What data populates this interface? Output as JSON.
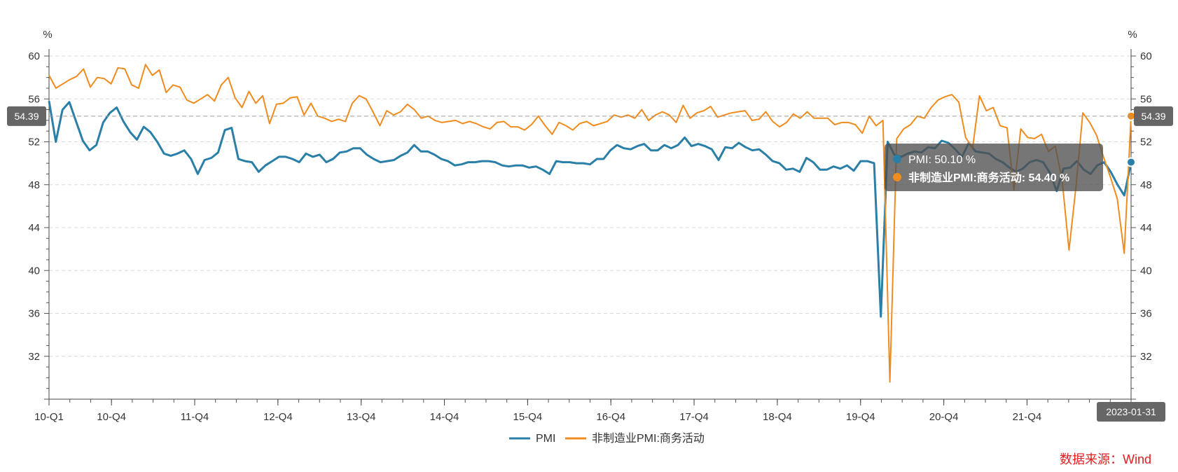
{
  "chart_data": {
    "type": "line",
    "left_axis_unit": "%",
    "right_axis_unit": "%",
    "y_ticks": [
      32,
      36,
      40,
      44,
      48,
      52,
      56,
      60
    ],
    "ylim": [
      28,
      60
    ],
    "x_start": "2010-01",
    "x_end": "2023-01",
    "x_tick_labels": [
      {
        "label": "10-Q1",
        "date": "2010-01"
      },
      {
        "label": "10-Q4",
        "date": "2010-10"
      },
      {
        "label": "11-Q4",
        "date": "2011-10"
      },
      {
        "label": "12-Q4",
        "date": "2012-10"
      },
      {
        "label": "13-Q4",
        "date": "2013-10"
      },
      {
        "label": "14-Q4",
        "date": "2014-10"
      },
      {
        "label": "15-Q4",
        "date": "2015-10"
      },
      {
        "label": "16-Q4",
        "date": "2016-10"
      },
      {
        "label": "17-Q4",
        "date": "2017-10"
      },
      {
        "label": "18-Q4",
        "date": "2018-10"
      },
      {
        "label": "19-Q4",
        "date": "2019-10"
      },
      {
        "label": "20-Q4",
        "date": "2020-10"
      },
      {
        "label": "21-Q4",
        "date": "2021-10"
      }
    ],
    "x_end_label": "2023-01-31",
    "y_pointer_value": "54.39",
    "legend_position": "bottom",
    "grid": true,
    "series": [
      {
        "name": "PMI",
        "color": "#2a7fa8",
        "values": [
          55.8,
          52.0,
          55.0,
          55.7,
          53.9,
          52.1,
          51.2,
          51.7,
          53.8,
          54.7,
          55.2,
          53.9,
          52.9,
          52.2,
          53.4,
          52.9,
          52.0,
          50.9,
          50.7,
          50.9,
          51.2,
          50.4,
          49.0,
          50.3,
          50.5,
          51.0,
          53.1,
          53.3,
          50.4,
          50.2,
          50.1,
          49.2,
          49.8,
          50.2,
          50.6,
          50.6,
          50.4,
          50.1,
          50.9,
          50.6,
          50.8,
          50.1,
          50.4,
          51.0,
          51.1,
          51.4,
          51.4,
          50.8,
          50.4,
          50.1,
          50.2,
          50.3,
          50.7,
          51.0,
          51.7,
          51.1,
          51.1,
          50.8,
          50.4,
          50.2,
          49.8,
          49.9,
          50.1,
          50.1,
          50.2,
          50.2,
          50.1,
          49.8,
          49.7,
          49.8,
          49.8,
          49.6,
          49.7,
          49.4,
          49.0,
          50.2,
          50.1,
          50.1,
          50.0,
          50.0,
          49.9,
          50.4,
          50.4,
          51.2,
          51.7,
          51.4,
          51.3,
          51.6,
          51.8,
          51.2,
          51.2,
          51.7,
          51.4,
          51.7,
          52.4,
          51.6,
          51.8,
          51.6,
          51.3,
          50.3,
          51.5,
          51.4,
          51.9,
          51.5,
          51.2,
          51.3,
          50.8,
          50.2,
          50.0,
          49.4,
          49.5,
          49.2,
          50.5,
          50.1,
          49.4,
          49.4,
          49.7,
          49.5,
          49.8,
          49.3,
          50.2,
          50.2,
          50.0,
          35.7,
          52.0,
          50.8,
          50.6,
          50.9,
          51.1,
          51.0,
          51.5,
          51.4,
          52.1,
          51.9,
          51.3,
          50.6,
          51.9,
          51.1,
          51.0,
          50.9,
          50.4,
          50.1,
          49.6,
          49.2,
          49.5,
          50.1,
          50.3,
          50.1,
          49.1,
          47.4,
          49.5,
          49.6,
          50.2,
          49.4,
          49.0,
          49.8,
          50.1,
          49.2,
          48.0,
          47.0,
          50.1
        ]
      },
      {
        "name": "非制造业PMI:商务活动",
        "color": "#f08c1e",
        "values": [
          58.2,
          57.0,
          57.4,
          57.8,
          58.1,
          58.8,
          57.1,
          58.0,
          57.9,
          57.4,
          58.9,
          58.8,
          57.3,
          57.0,
          59.2,
          58.2,
          58.7,
          56.6,
          57.3,
          57.1,
          55.9,
          55.6,
          56.0,
          56.4,
          55.8,
          57.3,
          58.0,
          56.1,
          55.2,
          56.7,
          55.6,
          56.3,
          53.7,
          55.5,
          55.6,
          56.1,
          56.2,
          54.5,
          55.6,
          54.4,
          54.2,
          53.9,
          54.1,
          53.9,
          55.6,
          56.3,
          56.0,
          54.8,
          53.5,
          54.9,
          54.5,
          54.8,
          55.5,
          55.0,
          54.2,
          54.4,
          54.0,
          53.8,
          53.9,
          54.0,
          53.7,
          53.9,
          53.7,
          53.4,
          53.2,
          53.8,
          53.9,
          53.4,
          53.4,
          53.1,
          53.6,
          54.4,
          53.5,
          52.7,
          53.8,
          53.5,
          53.1,
          53.7,
          53.9,
          53.5,
          53.7,
          53.9,
          54.5,
          54.3,
          54.5,
          54.2,
          55.0,
          54.0,
          54.5,
          54.8,
          54.5,
          53.8,
          55.4,
          54.2,
          54.7,
          54.9,
          55.3,
          54.3,
          54.5,
          54.7,
          54.8,
          54.9,
          54.0,
          54.1,
          54.8,
          53.9,
          53.4,
          53.8,
          54.6,
          54.2,
          54.8,
          54.2,
          54.2,
          54.2,
          53.6,
          53.8,
          53.8,
          53.6,
          52.8,
          54.4,
          53.5,
          54.0,
          29.6,
          52.3,
          53.2,
          53.6,
          54.4,
          54.2,
          55.2,
          55.9,
          56.2,
          56.4,
          55.7,
          52.4,
          51.4,
          56.3,
          54.9,
          55.2,
          53.5,
          53.3,
          47.5,
          53.2,
          52.4,
          52.3,
          52.7,
          51.1,
          51.6,
          48.4,
          41.9,
          47.8,
          54.7,
          53.8,
          52.6,
          50.6,
          48.7,
          46.7,
          41.6,
          54.4
        ]
      }
    ],
    "tooltip": {
      "lines": [
        {
          "series": "PMI",
          "text": "PMI: 50.10  %"
        },
        {
          "series": "非制造业PMI:商务活动",
          "text": "非制造业PMI:商务活动: 54.40  %"
        }
      ]
    }
  },
  "source_label": "数据来源：Wind"
}
